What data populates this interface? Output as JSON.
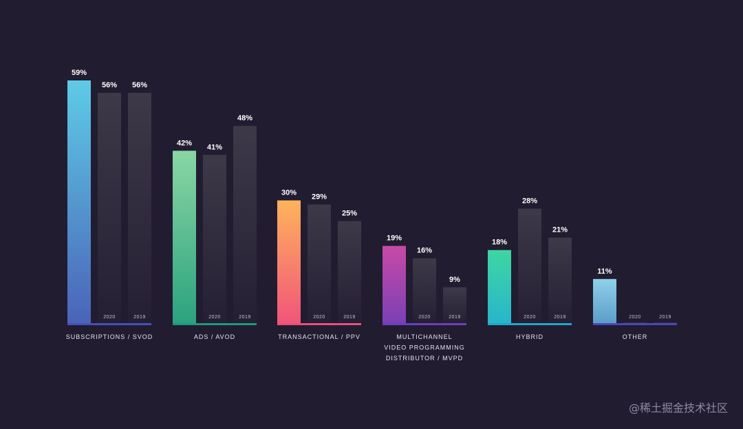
{
  "chart_data": {
    "type": "bar",
    "series": [
      {
        "name": "",
        "values": [
          59,
          42,
          30,
          19,
          18,
          11
        ]
      },
      {
        "name": "2020",
        "values": [
          56,
          41,
          29,
          16,
          28,
          0
        ]
      },
      {
        "name": "2019",
        "values": [
          56,
          48,
          25,
          9,
          21,
          0
        ]
      }
    ],
    "categories": [
      [
        "SUBSCRIPTIONS / SVOD"
      ],
      [
        "ADS / AVOD"
      ],
      [
        "TRANSACTIONAL / PPV"
      ],
      [
        "MULTICHANNEL",
        "VIDEO PROGRAMMING",
        "DISTRIBUTOR / MVPD"
      ],
      [
        "HYBRID"
      ],
      [
        "OTHER"
      ]
    ],
    "value_labels": [
      [
        "59%",
        "56%",
        "56%"
      ],
      [
        "42%",
        "41%",
        "48%"
      ],
      [
        "30%",
        "29%",
        "25%"
      ],
      [
        "19%",
        "16%",
        "9%"
      ],
      [
        "18%",
        "28%",
        "21%"
      ],
      [
        "11%",
        "",
        ""
      ]
    ],
    "year_labels": [
      "2020",
      "2019"
    ],
    "ylim": [
      0,
      59
    ],
    "grid": false,
    "accent_gradients": [
      [
        "#5ecbe6",
        "#4a63b8"
      ],
      [
        "#8ad6a4",
        "#2aa27e"
      ],
      [
        "#ffb35c",
        "#f0547a"
      ],
      [
        "#c84aa6",
        "#7a3fb6"
      ],
      [
        "#3fd6a2",
        "#27b5cc"
      ],
      [
        "#8fd0ea",
        "#5a9cc8"
      ]
    ],
    "baseline_colors": [
      "#4a4fb8",
      "#1f9a7a",
      "#ea4f7e",
      "#6a3fbf",
      "#20a8c8",
      "#4848b8"
    ],
    "gray_bar_colors": [
      "#3d3948",
      "#241f33"
    ]
  },
  "watermark": "@稀土掘金技术社区"
}
